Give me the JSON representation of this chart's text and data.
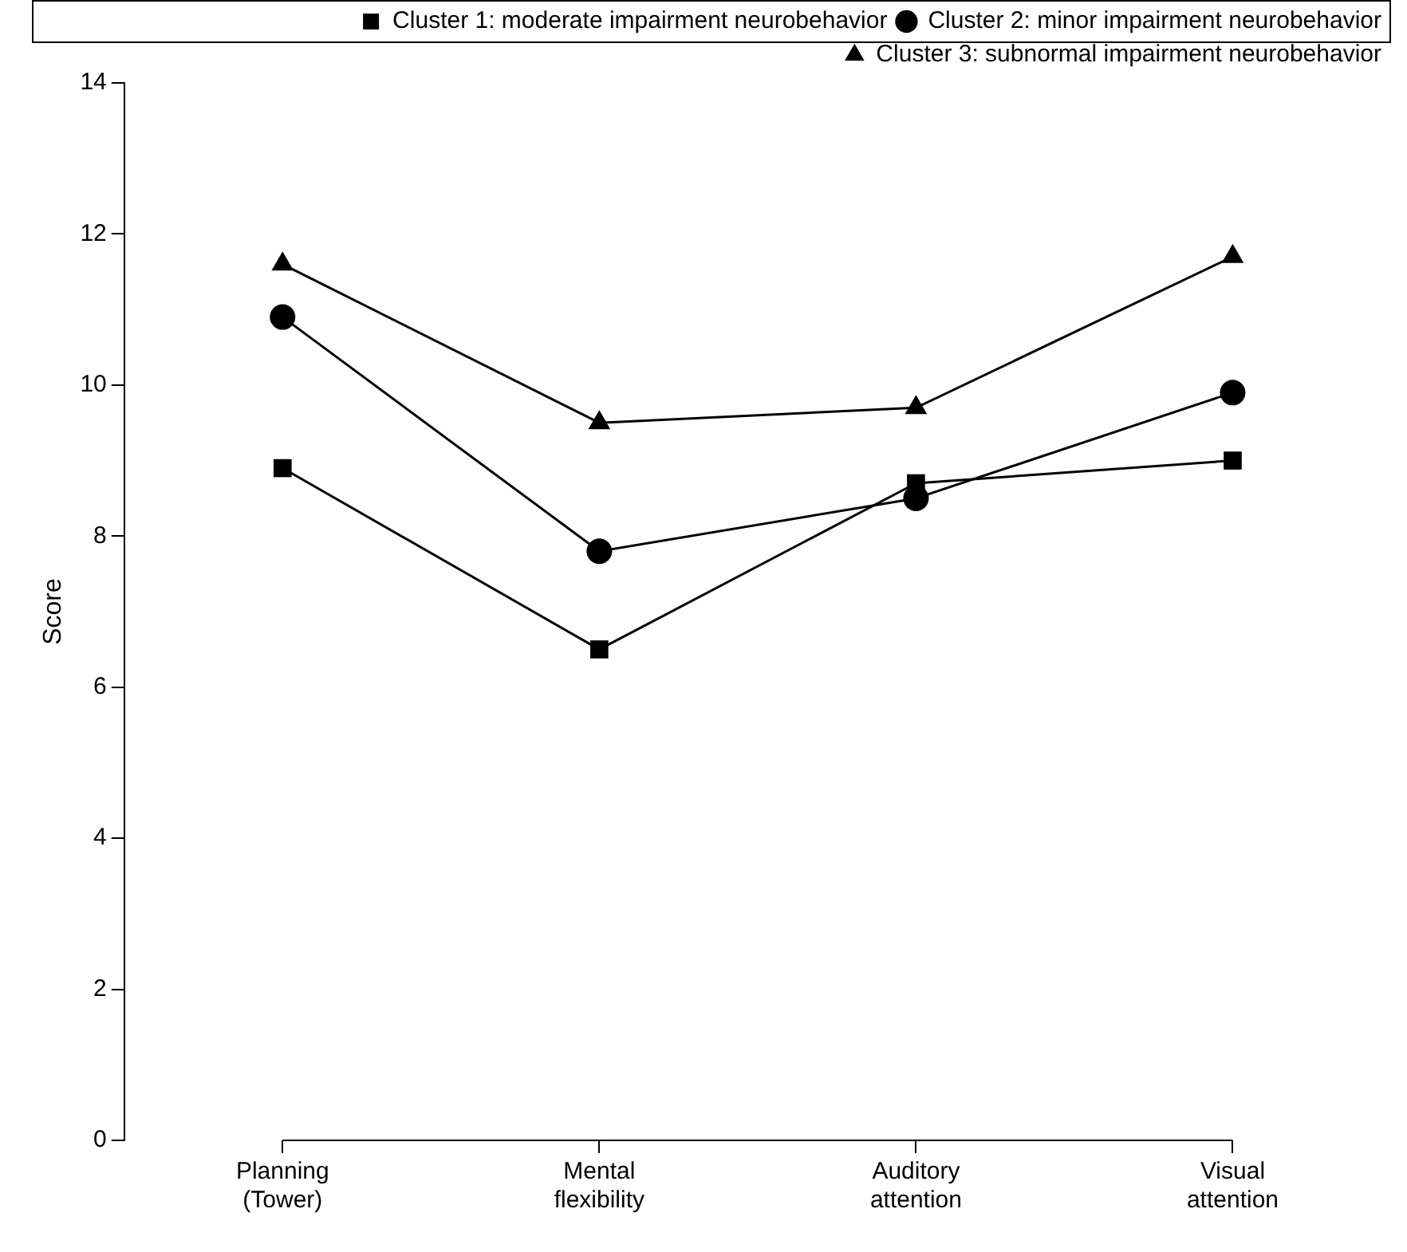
{
  "chart_data": {
    "type": "line",
    "ylabel": "Score",
    "categories": [
      "Planning\n(Tower)",
      "Mental\nflexibility",
      "Auditory\nattention",
      "Visual\nattention"
    ],
    "series": [
      {
        "name": "Cluster 1: moderate impairment neurobehavior",
        "color": "#000000",
        "marker": "square",
        "values": [
          8.9,
          6.5,
          8.7,
          9.0
        ]
      },
      {
        "name": "Cluster 2: minor impairment neurobehavior",
        "color": "#000000",
        "marker": "circle",
        "values": [
          10.9,
          7.8,
          8.5,
          9.9
        ]
      },
      {
        "name": "Cluster 3: subnormal impairment neurobehavior",
        "color": "#000000",
        "marker": "triangle",
        "values": [
          11.6,
          9.5,
          9.7,
          11.7
        ]
      }
    ],
    "ylim": [
      0,
      14
    ],
    "yticks": [
      0,
      2,
      4,
      6,
      8,
      10,
      12,
      14
    ],
    "grid": false,
    "legend": "top right",
    "line_style": "solid"
  }
}
